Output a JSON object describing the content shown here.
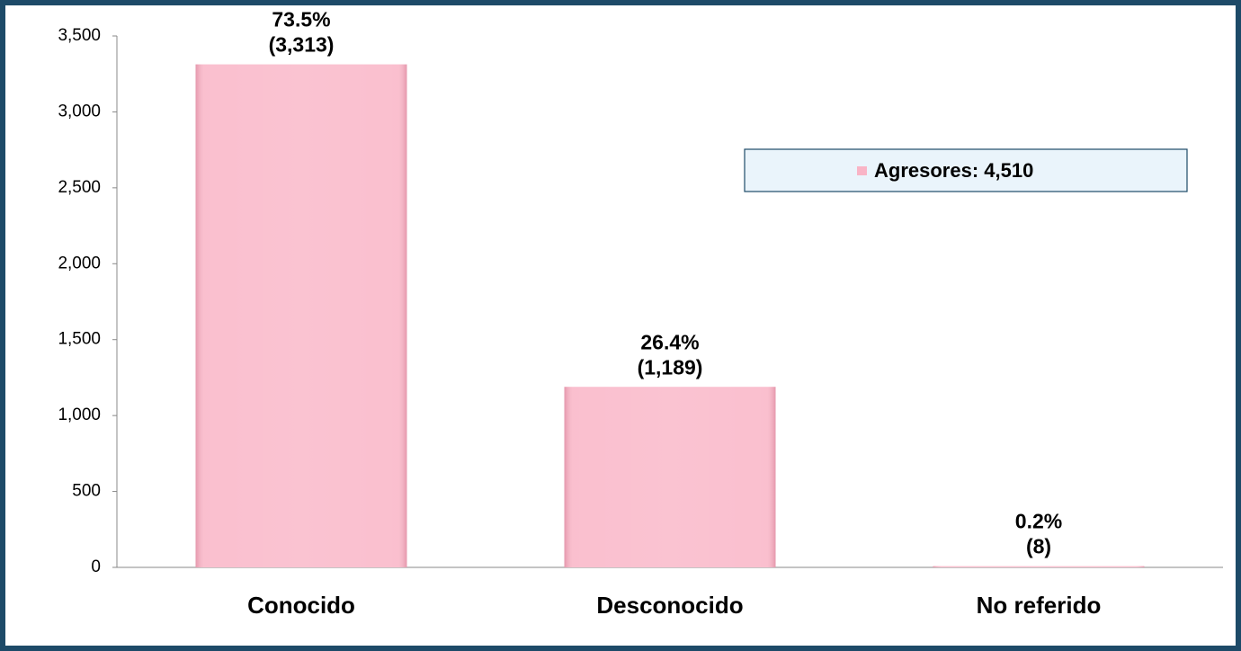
{
  "chart_data": {
    "type": "bar",
    "categories": [
      "Conocido",
      "Desconocido",
      "No referido"
    ],
    "series": [
      {
        "name": "Agresores: 4,510",
        "color": "#f9b4c6",
        "values": [
          3313,
          1189,
          8
        ],
        "value_labels": [
          "(3,313)",
          "(1,189)",
          "(8)"
        ],
        "percent_labels": [
          "73.5%",
          "26.4%",
          "0.2%"
        ]
      }
    ],
    "ylim": [
      0,
      3500
    ],
    "yticks": [
      0,
      500,
      {
        "value": 1000,
        "label": "1,000"
      },
      {
        "value": 1500,
        "label": "1,500"
      },
      {
        "value": 2000,
        "label": "2,000"
      },
      {
        "value": 2500,
        "label": "2,500"
      },
      {
        "value": 3000,
        "label": "3,000"
      },
      {
        "value": 3500,
        "label": "3,500"
      }
    ],
    "grid": false,
    "legend": "upper right"
  }
}
